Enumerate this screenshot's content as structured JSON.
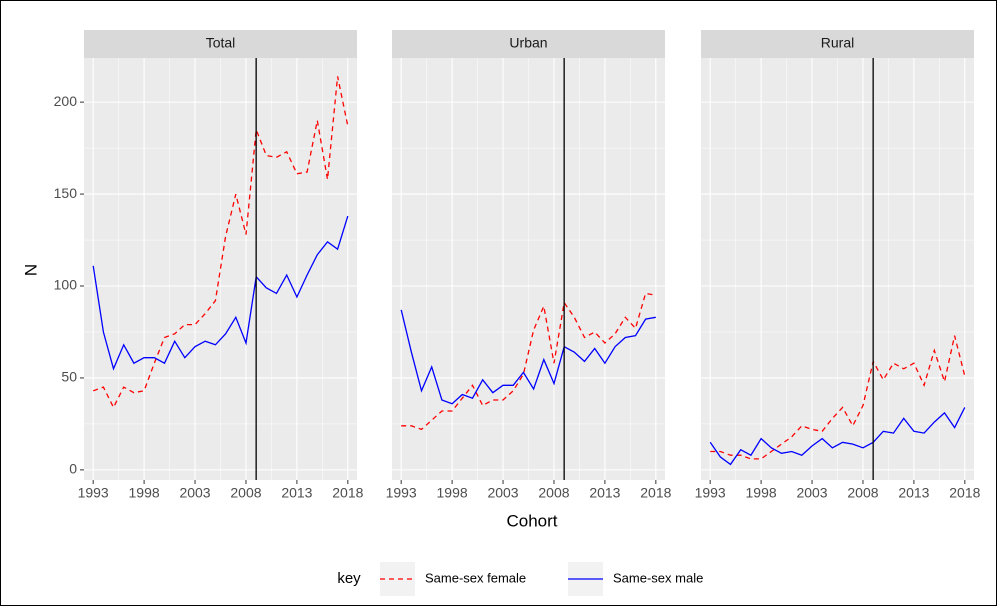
{
  "chart_data": {
    "type": "line",
    "x": [
      1993,
      1994,
      1995,
      1996,
      1997,
      1998,
      1999,
      2000,
      2001,
      2002,
      2003,
      2004,
      2005,
      2006,
      2007,
      2008,
      2009,
      2010,
      2011,
      2012,
      2013,
      2014,
      2015,
      2016,
      2017,
      2018
    ],
    "xlim": [
      1992.1,
      2018.9
    ],
    "xticks": [
      1993,
      1998,
      2003,
      2008,
      2013,
      2018
    ],
    "ylim": [
      -5.5,
      224
    ],
    "yticks": [
      0,
      50,
      100,
      150,
      200
    ],
    "xlabel": "Cohort",
    "ylabel": "N",
    "legend_title": "key",
    "grid": true,
    "vline": 2009,
    "series": [
      {
        "name": "Same-sex female",
        "color": "#ff0000",
        "dashed": true
      },
      {
        "name": "Same-sex male",
        "color": "#0000ff",
        "dashed": false
      }
    ],
    "panels": [
      {
        "title": "Total",
        "series": [
          {
            "values": [
              43,
              45,
              34,
              45,
              42,
              43,
              58,
              72,
              74,
              79,
              79,
              85,
              92,
              127,
              150,
              128,
              185,
              171,
              170,
              173,
              161,
              162,
              190,
              158,
              214,
              187
            ]
          },
          {
            "values": [
              111,
              75,
              55,
              68,
              58,
              61,
              61,
              58,
              70,
              61,
              67,
              70,
              68,
              74,
              83,
              69,
              105,
              99,
              96,
              106,
              94,
              106,
              117,
              124,
              120,
              138
            ]
          }
        ]
      },
      {
        "title": "Urban",
        "series": [
          {
            "values": [
              24,
              24,
              22,
              27,
              32,
              32,
              39,
              46,
              35,
              38,
              38,
              43,
              52,
              76,
              89,
              58,
              91,
              83,
              72,
              75,
              69,
              74,
              83,
              77,
              96,
              95
            ]
          },
          {
            "values": [
              87,
              64,
              43,
              56,
              38,
              36,
              41,
              39,
              49,
              42,
              46,
              46,
              53,
              44,
              60,
              47,
              67,
              64,
              59,
              66,
              58,
              67,
              72,
              73,
              82,
              83
            ]
          }
        ]
      },
      {
        "title": "Rural",
        "series": [
          {
            "values": [
              10,
              10,
              8,
              8,
              6,
              6,
              10,
              14,
              18,
              24,
              22,
              21,
              28,
              34,
              24,
              35,
              59,
              49,
              58,
              55,
              58,
              46,
              65,
              48,
              73,
              51
            ]
          },
          {
            "values": [
              15,
              7,
              3,
              11,
              8,
              17,
              12,
              9,
              10,
              8,
              13,
              17,
              12,
              15,
              14,
              12,
              15,
              21,
              20,
              28,
              21,
              20,
              26,
              31,
              23,
              34
            ]
          }
        ]
      }
    ]
  }
}
